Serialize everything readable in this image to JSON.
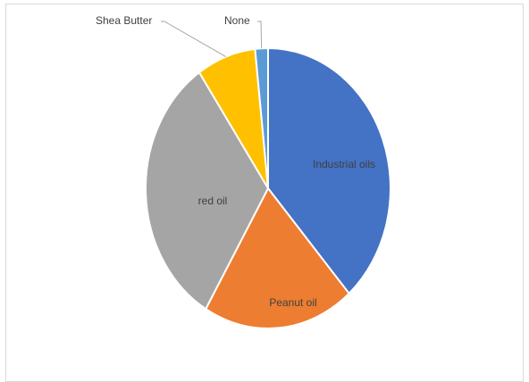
{
  "chart_data": {
    "type": "pie",
    "title": "",
    "start_angle_deg": 0,
    "direction": "clockwise",
    "slices": [
      {
        "label": "Industrial oils",
        "value": 38.5,
        "color": "#4472C4",
        "label_position": "inside"
      },
      {
        "label": "Peanut oil",
        "value": 20.0,
        "color": "#ED7D31",
        "label_position": "inside"
      },
      {
        "label": "red oil",
        "value": 32.0,
        "color": "#A5A5A5",
        "label_position": "inside"
      },
      {
        "label": "Shea Butter",
        "value": 7.8,
        "color": "#FFC000",
        "label_position": "outside"
      },
      {
        "label": "None",
        "value": 1.7,
        "color": "#5B9BD5",
        "label_position": "outside"
      }
    ],
    "legend": "none"
  }
}
